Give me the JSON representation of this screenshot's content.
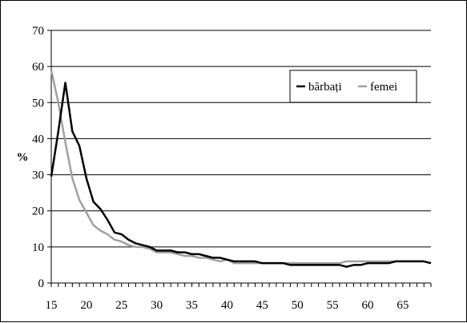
{
  "chart_data": {
    "type": "line",
    "title": "",
    "xlabel": "",
    "ylabel": "%",
    "xlim": [
      15,
      69
    ],
    "ylim": [
      0,
      70
    ],
    "x_ticks": [
      15,
      20,
      25,
      30,
      35,
      40,
      45,
      50,
      55,
      60,
      65
    ],
    "y_ticks": [
      0,
      10,
      20,
      30,
      40,
      50,
      60,
      70
    ],
    "grid": true,
    "legend_position": "top-right",
    "x": [
      15,
      16,
      17,
      18,
      19,
      20,
      21,
      22,
      23,
      24,
      25,
      26,
      27,
      28,
      29,
      30,
      31,
      32,
      33,
      34,
      35,
      36,
      37,
      38,
      39,
      40,
      41,
      42,
      43,
      44,
      45,
      46,
      47,
      48,
      49,
      50,
      51,
      52,
      53,
      54,
      55,
      56,
      57,
      58,
      59,
      60,
      61,
      62,
      63,
      64,
      65,
      66,
      67,
      68,
      69
    ],
    "series": [
      {
        "name": "bărbați",
        "color": "#000000",
        "values": [
          29.5,
          42,
          55.5,
          42,
          38,
          29,
          22.5,
          20.5,
          17.5,
          14,
          13.5,
          12,
          11,
          10.5,
          10,
          9,
          9,
          9,
          8.5,
          8.5,
          8,
          8,
          7.5,
          7,
          7,
          6.5,
          6,
          6,
          6,
          6,
          5.5,
          5.5,
          5.5,
          5.5,
          5,
          5,
          5,
          5,
          5,
          5,
          5,
          5,
          4.5,
          5,
          5,
          5.5,
          5.5,
          5.5,
          5.5,
          6,
          6,
          6,
          6,
          6,
          5.5
        ]
      },
      {
        "name": "femei",
        "color": "#a0a0a0",
        "values": [
          59,
          50,
          39,
          29,
          23,
          19.5,
          16,
          14.5,
          13.5,
          12,
          11.5,
          10.5,
          10,
          10,
          9.5,
          8.5,
          8.5,
          8.5,
          8,
          7.5,
          7.5,
          7,
          7,
          6.5,
          6,
          6.5,
          5.5,
          5.5,
          5.5,
          5.5,
          5.5,
          5.5,
          5.5,
          5.5,
          5.5,
          5.5,
          5.5,
          5.5,
          5.5,
          5.5,
          5.5,
          5.5,
          6,
          6,
          6,
          6,
          6,
          6,
          6,
          6,
          6,
          6,
          6,
          6,
          5.5
        ]
      }
    ]
  }
}
